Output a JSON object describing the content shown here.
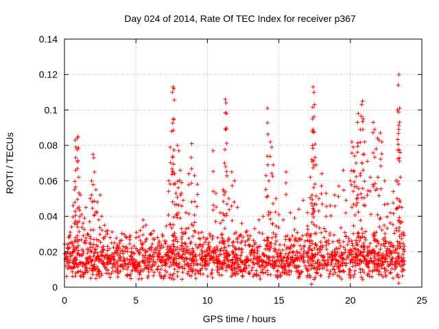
{
  "chart_data": {
    "type": "scatter",
    "title": "Day 024 of 2014, Rate Of TEC Index for receiver p367",
    "xlabel": "GPS time / hours",
    "ylabel": "ROTI / TECUs",
    "xlim": [
      0,
      25
    ],
    "ylim": [
      0,
      0.14
    ],
    "xticks": [
      0,
      5,
      10,
      15,
      20,
      25
    ],
    "xtick_labels": [
      "0",
      "5",
      "10",
      "15",
      "20",
      "25"
    ],
    "yticks": [
      0,
      0.02,
      0.04,
      0.06,
      0.08,
      0.1,
      0.12,
      0.14
    ],
    "ytick_labels": [
      "0",
      "0.02",
      "0.04",
      "0.06",
      "0.08",
      "0.1",
      "0.12",
      "0.14"
    ],
    "grid": true,
    "marker": "+",
    "color": "#ff0000",
    "series": [
      {
        "name": "ROTI",
        "points": [
          [
            0.1,
            0.012
          ],
          [
            0.2,
            0.022
          ],
          [
            0.3,
            0.028
          ],
          [
            0.4,
            0.031
          ],
          [
            0.5,
            0.034
          ],
          [
            0.6,
            0.046
          ],
          [
            0.7,
            0.055
          ],
          [
            0.75,
            0.083
          ],
          [
            0.8,
            0.079
          ],
          [
            0.9,
            0.084
          ],
          [
            0.95,
            0.085
          ],
          [
            1.0,
            0.062
          ],
          [
            1.1,
            0.052
          ],
          [
            1.2,
            0.041
          ],
          [
            1.3,
            0.036
          ],
          [
            1.4,
            0.039
          ],
          [
            1.5,
            0.045
          ],
          [
            1.6,
            0.03
          ],
          [
            1.7,
            0.021
          ],
          [
            1.8,
            0.05
          ],
          [
            1.9,
            0.06
          ],
          [
            2.0,
            0.075
          ],
          [
            2.05,
            0.073
          ],
          [
            2.1,
            0.065
          ],
          [
            2.2,
            0.055
          ],
          [
            2.3,
            0.048
          ],
          [
            2.4,
            0.038
          ],
          [
            2.5,
            0.052
          ],
          [
            2.6,
            0.04
          ],
          [
            2.8,
            0.035
          ],
          [
            3.0,
            0.03
          ],
          [
            3.2,
            0.028
          ],
          [
            3.5,
            0.025
          ],
          [
            3.8,
            0.022
          ],
          [
            4.1,
            0.019
          ],
          [
            4.4,
            0.02
          ],
          [
            4.7,
            0.022
          ],
          [
            5.0,
            0.028
          ],
          [
            5.3,
            0.032
          ],
          [
            5.5,
            0.038
          ],
          [
            5.7,
            0.035
          ],
          [
            6.0,
            0.03
          ],
          [
            6.3,
            0.027
          ],
          [
            6.6,
            0.025
          ],
          [
            7.0,
            0.026
          ],
          [
            7.3,
            0.06
          ],
          [
            7.4,
            0.079
          ],
          [
            7.5,
            0.088
          ],
          [
            7.55,
            0.11
          ],
          [
            7.6,
            0.113
          ],
          [
            7.65,
            0.112
          ],
          [
            7.7,
            0.064
          ],
          [
            7.8,
            0.053
          ],
          [
            7.9,
            0.08
          ],
          [
            8.0,
            0.077
          ],
          [
            8.1,
            0.066
          ],
          [
            8.2,
            0.059
          ],
          [
            8.3,
            0.049
          ],
          [
            8.5,
            0.042
          ],
          [
            8.7,
            0.064
          ],
          [
            8.9,
            0.081
          ],
          [
            9.1,
            0.063
          ],
          [
            9.3,
            0.058
          ],
          [
            9.6,
            0.031
          ],
          [
            9.9,
            0.027
          ],
          [
            10.2,
            0.029
          ],
          [
            10.4,
            0.077
          ],
          [
            10.6,
            0.053
          ],
          [
            10.9,
            0.042
          ],
          [
            11.1,
            0.055
          ],
          [
            11.2,
            0.07
          ],
          [
            11.25,
            0.106
          ],
          [
            11.3,
            0.104
          ],
          [
            11.35,
            0.098
          ],
          [
            11.5,
            0.05
          ],
          [
            11.7,
            0.065
          ],
          [
            11.9,
            0.06
          ],
          [
            12.1,
            0.045
          ],
          [
            12.4,
            0.036
          ],
          [
            12.7,
            0.031
          ],
          [
            13.0,
            0.029
          ],
          [
            13.3,
            0.033
          ],
          [
            13.6,
            0.038
          ],
          [
            13.9,
            0.04
          ],
          [
            14.1,
            0.063
          ],
          [
            14.2,
            0.101
          ],
          [
            14.3,
            0.06
          ],
          [
            14.4,
            0.082
          ],
          [
            14.5,
            0.079
          ],
          [
            14.6,
            0.069
          ],
          [
            14.8,
            0.05
          ],
          [
            15.0,
            0.041
          ],
          [
            15.3,
            0.038
          ],
          [
            15.5,
            0.065
          ],
          [
            15.8,
            0.042
          ],
          [
            16.1,
            0.039
          ],
          [
            16.4,
            0.044
          ],
          [
            16.7,
            0.049
          ],
          [
            17.0,
            0.042
          ],
          [
            17.2,
            0.062
          ],
          [
            17.3,
            0.072
          ],
          [
            17.35,
            0.095
          ],
          [
            17.4,
            0.113
          ],
          [
            17.45,
            0.11
          ],
          [
            17.5,
            0.103
          ],
          [
            17.6,
            0.069
          ],
          [
            17.8,
            0.05
          ],
          [
            18.0,
            0.064
          ],
          [
            18.3,
            0.053
          ],
          [
            18.6,
            0.046
          ],
          [
            18.9,
            0.052
          ],
          [
            19.2,
            0.057
          ],
          [
            19.5,
            0.066
          ],
          [
            19.7,
            0.049
          ],
          [
            20.0,
            0.06
          ],
          [
            20.1,
            0.082
          ],
          [
            20.2,
            0.079
          ],
          [
            20.3,
            0.074
          ],
          [
            20.4,
            0.07
          ],
          [
            20.5,
            0.093
          ],
          [
            20.55,
            0.098
          ],
          [
            20.7,
            0.089
          ],
          [
            20.8,
            0.103
          ],
          [
            20.85,
            0.105
          ],
          [
            20.9,
            0.095
          ],
          [
            21.0,
            0.082
          ],
          [
            21.2,
            0.071
          ],
          [
            21.4,
            0.062
          ],
          [
            21.6,
            0.093
          ],
          [
            21.7,
            0.089
          ],
          [
            21.8,
            0.078
          ],
          [
            21.9,
            0.084
          ],
          [
            22.0,
            0.083
          ],
          [
            22.1,
            0.087
          ],
          [
            22.2,
            0.082
          ],
          [
            22.4,
            0.06
          ],
          [
            22.6,
            0.047
          ],
          [
            22.8,
            0.042
          ],
          [
            23.0,
            0.054
          ],
          [
            23.2,
            0.06
          ],
          [
            23.3,
            0.1
          ],
          [
            23.35,
            0.114
          ],
          [
            23.4,
            0.12
          ],
          [
            23.45,
            0.101
          ],
          [
            23.5,
            0.062
          ],
          [
            23.6,
            0.045
          ],
          [
            23.7,
            0.03
          ]
        ]
      }
    ],
    "dense_band": {
      "x_range": [
        0,
        23.8
      ],
      "y_low": [
        0.004,
        0.016
      ],
      "y_high": [
        0.018,
        0.035
      ]
    }
  }
}
